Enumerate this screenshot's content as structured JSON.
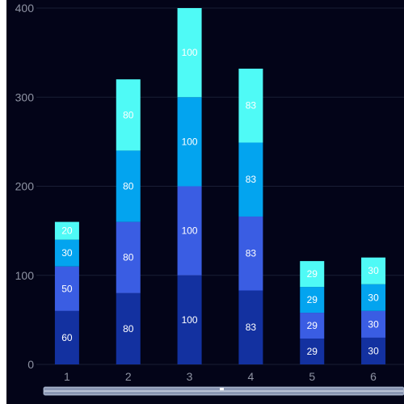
{
  "chart_data": {
    "type": "bar",
    "stacked": true,
    "categories": [
      "1",
      "2",
      "3",
      "4",
      "5",
      "6"
    ],
    "series": [
      {
        "values": [
          60,
          80,
          100,
          83,
          29,
          30
        ],
        "color": "#1331a0"
      },
      {
        "values": [
          50,
          80,
          100,
          83,
          29,
          30
        ],
        "color": "#3a5de3"
      },
      {
        "values": [
          30,
          80,
          100,
          83,
          29,
          30
        ],
        "color": "#03a4ef"
      },
      {
        "values": [
          20,
          80,
          100,
          83,
          29,
          30
        ],
        "color": "#4ffaf6"
      }
    ],
    "y_ticks": [
      "0",
      "100",
      "200",
      "300",
      "400"
    ],
    "ylim": [
      0,
      400
    ],
    "grid": true,
    "legend": "none",
    "title": "",
    "xlabel": "",
    "ylabel": "",
    "colors": {
      "background": "#030418",
      "grid": "#1a1e35",
      "tick_text": "#8e93a3",
      "label_text": "#ffffff",
      "scrollbar": "#8a97b4"
    }
  }
}
